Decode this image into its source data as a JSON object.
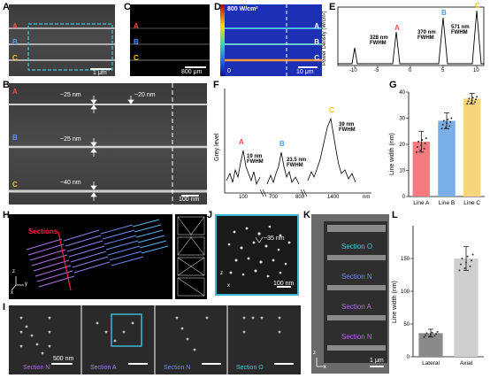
{
  "panels": {
    "A": {
      "label": "A",
      "scale": "1 μm",
      "lines": [
        "A",
        "B",
        "C"
      ]
    },
    "B": {
      "label": "B",
      "scale": "100 nm",
      "lines": [
        "A",
        "B",
        "C"
      ],
      "annotations": [
        "~25 nm",
        "~20 nm",
        "~25 nm",
        "~40 nm"
      ]
    },
    "C": {
      "label": "C",
      "scale": "800 μm",
      "lines": [
        "A",
        "B",
        "C"
      ]
    },
    "D": {
      "label": "D",
      "scale_top": "800 W/cm²",
      "scale_bottom": "0",
      "scale": "10 μm",
      "lines": [
        "A",
        "B",
        "C"
      ]
    },
    "E": {
      "label": "E",
      "ylabel": "Power Density (W/cm²)",
      "peaks": [
        {
          "name": "A",
          "fwhm": "328 nm\nFWHM"
        },
        {
          "name": "B",
          "fwhm": "370 nm\nFWHM"
        },
        {
          "name": "C",
          "fwhm": "571 nm\nFWHM"
        }
      ],
      "xticks": [
        "-10",
        "-5",
        "0",
        "5",
        "10"
      ]
    },
    "F": {
      "label": "F",
      "ylabel": "Grey level",
      "xunit": "nm",
      "xticks": [
        "100",
        "700",
        "800",
        "1400"
      ],
      "peaks": [
        {
          "name": "A",
          "fwhm": "19 nm\nFWHM"
        },
        {
          "name": "B",
          "fwhm": "23.5 nm\nFWHM"
        },
        {
          "name": "C",
          "fwhm": "39 nm\nFWHM"
        }
      ]
    },
    "G": {
      "label": "G",
      "ylabel": "Line width (nm)"
    },
    "H": {
      "label": "H",
      "sections": "Sections"
    },
    "I": {
      "label": "I",
      "scale": "500 nm",
      "sections": [
        "Section N",
        "Section A",
        "Section N",
        "Section O"
      ]
    },
    "J": {
      "label": "J",
      "annotation": "~35 nm",
      "scale": "100 nm"
    },
    "K": {
      "label": "K",
      "scale": "1 μm",
      "sections": [
        "Section O",
        "Section N",
        "Section A",
        "Section N"
      ]
    },
    "L": {
      "label": "L",
      "ylabel": "Line width (nm)"
    }
  },
  "axis_letters": {
    "x": "x",
    "y": "y",
    "z": "z"
  },
  "colors": {
    "A": "#ff4a4a",
    "B": "#4f9cff",
    "C": "#ffc400",
    "O": "#4fc8e0"
  },
  "chart_data": [
    {
      "type": "bar",
      "panel": "G",
      "categories": [
        "Line A",
        "Line B",
        "Line C"
      ],
      "values": [
        21,
        29,
        37.5
      ],
      "errors": [
        4,
        3,
        2
      ],
      "colors": [
        "#f47a80",
        "#7aaee6",
        "#f7d57a"
      ],
      "ylabel": "Line width (nm)",
      "ylim": [
        0,
        40
      ],
      "yticks": [
        0,
        10,
        20,
        30,
        40
      ]
    },
    {
      "type": "bar",
      "panel": "L",
      "categories": [
        "Lateral",
        "Axial"
      ],
      "values": [
        36,
        150
      ],
      "errors": [
        6,
        18
      ],
      "colors": [
        "#8a8a8a",
        "#cfcfcf"
      ],
      "ylabel": "Line width (nm)",
      "ylim": [
        0,
        200
      ],
      "yticks": [
        0,
        50,
        100,
        150
      ]
    }
  ]
}
